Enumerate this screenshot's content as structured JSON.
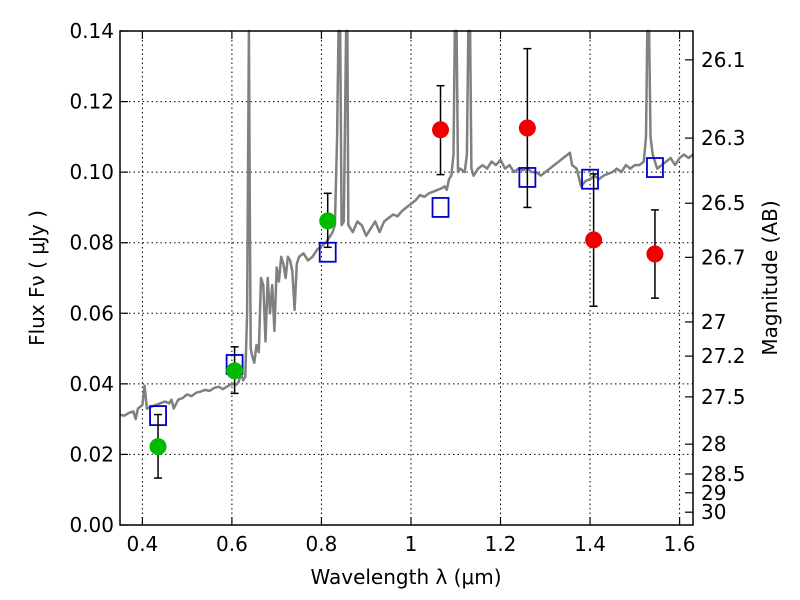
{
  "chart_data": {
    "type": "scatter",
    "xlabel": "Wavelength  λ (μm)",
    "ylabel_left": "Flux  Fν  ( μJy )",
    "ylabel_right": "Magnitude (AB)",
    "xlim": [
      0.35,
      1.63
    ],
    "ylim": [
      0.0,
      0.14
    ],
    "grid": true,
    "x_ticks": [
      {
        "value": 0.4,
        "label": "0.4"
      },
      {
        "value": 0.6,
        "label": "0.6"
      },
      {
        "value": 0.8,
        "label": "0.8"
      },
      {
        "value": 1.0,
        "label": "1"
      },
      {
        "value": 1.2,
        "label": "1.2"
      },
      {
        "value": 1.4,
        "label": "1.4"
      },
      {
        "value": 1.6,
        "label": "1.6"
      }
    ],
    "y_ticks": [
      {
        "value": 0.0,
        "label": "0.00"
      },
      {
        "value": 0.02,
        "label": "0.02"
      },
      {
        "value": 0.04,
        "label": "0.04"
      },
      {
        "value": 0.06,
        "label": "0.06"
      },
      {
        "value": 0.08,
        "label": "0.08"
      },
      {
        "value": 0.1,
        "label": "0.10"
      },
      {
        "value": 0.12,
        "label": "0.12"
      },
      {
        "value": 0.14,
        "label": "0.14"
      }
    ],
    "mag_ticks": [
      {
        "value": 26.1,
        "label": "26.1"
      },
      {
        "value": 26.3,
        "label": "26.3"
      },
      {
        "value": 26.5,
        "label": "26.5"
      },
      {
        "value": 26.7,
        "label": "26.7"
      },
      {
        "value": 27.0,
        "label": "27"
      },
      {
        "value": 27.2,
        "label": "27.2"
      },
      {
        "value": 27.5,
        "label": "27.5"
      },
      {
        "value": 28.0,
        "label": "28"
      },
      {
        "value": 28.5,
        "label": "28.5"
      },
      {
        "value": 29.0,
        "label": "29"
      },
      {
        "value": 30.0,
        "label": "30"
      }
    ],
    "series": [
      {
        "kind": "line",
        "color": "#808080",
        "points": [
          [
            0.35,
            0.0312
          ],
          [
            0.36,
            0.031
          ],
          [
            0.37,
            0.0318
          ],
          [
            0.38,
            0.0322
          ],
          [
            0.385,
            0.03
          ],
          [
            0.39,
            0.033
          ],
          [
            0.4,
            0.034
          ],
          [
            0.405,
            0.0395
          ],
          [
            0.41,
            0.033
          ],
          [
            0.42,
            0.0335
          ],
          [
            0.43,
            0.034
          ],
          [
            0.44,
            0.0345
          ],
          [
            0.45,
            0.035
          ],
          [
            0.46,
            0.0345
          ],
          [
            0.465,
            0.0355
          ],
          [
            0.47,
            0.033
          ],
          [
            0.48,
            0.0355
          ],
          [
            0.49,
            0.036
          ],
          [
            0.5,
            0.037
          ],
          [
            0.51,
            0.0365
          ],
          [
            0.52,
            0.0375
          ],
          [
            0.53,
            0.0378
          ],
          [
            0.54,
            0.0383
          ],
          [
            0.55,
            0.038
          ],
          [
            0.56,
            0.0388
          ],
          [
            0.57,
            0.0392
          ],
          [
            0.58,
            0.0385
          ],
          [
            0.59,
            0.0393
          ],
          [
            0.6,
            0.04
          ],
          [
            0.61,
            0.0398
          ],
          [
            0.615,
            0.0405
          ],
          [
            0.62,
            0.043
          ],
          [
            0.625,
            0.041
          ],
          [
            0.63,
            0.042
          ],
          [
            0.634,
            0.06
          ],
          [
            0.636,
            0.1
          ],
          [
            0.638,
            0.14
          ],
          [
            0.64,
            0.09
          ],
          [
            0.642,
            0.05
          ],
          [
            0.645,
            0.048
          ],
          [
            0.65,
            0.046
          ],
          [
            0.655,
            0.051
          ],
          [
            0.66,
            0.049
          ],
          [
            0.665,
            0.07
          ],
          [
            0.67,
            0.068
          ],
          [
            0.675,
            0.052
          ],
          [
            0.68,
            0.07
          ],
          [
            0.685,
            0.06
          ],
          [
            0.69,
            0.068
          ],
          [
            0.695,
            0.055
          ],
          [
            0.7,
            0.073
          ],
          [
            0.705,
            0.069
          ],
          [
            0.71,
            0.076
          ],
          [
            0.715,
            0.074
          ],
          [
            0.72,
            0.07
          ],
          [
            0.725,
            0.076
          ],
          [
            0.73,
            0.075
          ],
          [
            0.735,
            0.072
          ],
          [
            0.74,
            0.061
          ],
          [
            0.745,
            0.074
          ],
          [
            0.75,
            0.076
          ],
          [
            0.76,
            0.077
          ],
          [
            0.77,
            0.075
          ],
          [
            0.78,
            0.076
          ],
          [
            0.79,
            0.078
          ],
          [
            0.8,
            0.079
          ],
          [
            0.81,
            0.08
          ],
          [
            0.82,
            0.082
          ],
          [
            0.825,
            0.083
          ],
          [
            0.83,
            0.085
          ],
          [
            0.835,
            0.11
          ],
          [
            0.838,
            0.14
          ],
          [
            0.842,
            0.14
          ],
          [
            0.845,
            0.085
          ],
          [
            0.85,
            0.086
          ],
          [
            0.855,
            0.14
          ],
          [
            0.858,
            0.14
          ],
          [
            0.86,
            0.085
          ],
          [
            0.87,
            0.083
          ],
          [
            0.88,
            0.086
          ],
          [
            0.89,
            0.085
          ],
          [
            0.9,
            0.082
          ],
          [
            0.91,
            0.084
          ],
          [
            0.92,
            0.086
          ],
          [
            0.93,
            0.083
          ],
          [
            0.94,
            0.086
          ],
          [
            0.95,
            0.087
          ],
          [
            0.96,
            0.088
          ],
          [
            0.97,
            0.0875
          ],
          [
            0.98,
            0.089
          ],
          [
            0.99,
            0.09
          ],
          [
            1.0,
            0.091
          ],
          [
            1.01,
            0.092
          ],
          [
            1.02,
            0.0935
          ],
          [
            1.03,
            0.093
          ],
          [
            1.04,
            0.094
          ],
          [
            1.05,
            0.0945
          ],
          [
            1.06,
            0.095
          ],
          [
            1.07,
            0.0955
          ],
          [
            1.075,
            0.096
          ],
          [
            1.08,
            0.095
          ],
          [
            1.085,
            0.098
          ],
          [
            1.09,
            0.099
          ],
          [
            1.095,
            0.105
          ],
          [
            1.098,
            0.14
          ],
          [
            1.102,
            0.14
          ],
          [
            1.105,
            0.1
          ],
          [
            1.11,
            0.101
          ],
          [
            1.12,
            0.1
          ],
          [
            1.125,
            0.105
          ],
          [
            1.128,
            0.14
          ],
          [
            1.132,
            0.14
          ],
          [
            1.135,
            0.101
          ],
          [
            1.14,
            0.099
          ],
          [
            1.15,
            0.101
          ],
          [
            1.16,
            0.102
          ],
          [
            1.17,
            0.101
          ],
          [
            1.18,
            0.103
          ],
          [
            1.19,
            0.102
          ],
          [
            1.2,
            0.1035
          ],
          [
            1.21,
            0.101
          ],
          [
            1.22,
            0.102
          ],
          [
            1.23,
            0.1
          ],
          [
            1.24,
            0.101
          ],
          [
            1.25,
            0.1005
          ],
          [
            1.26,
            0.101
          ],
          [
            1.27,
            0.1
          ],
          [
            1.28,
            0.1
          ],
          [
            1.29,
            0.099
          ],
          [
            1.3,
            0.1
          ],
          [
            1.31,
            0.101
          ],
          [
            1.32,
            0.102
          ],
          [
            1.33,
            0.103
          ],
          [
            1.34,
            0.104
          ],
          [
            1.35,
            0.105
          ],
          [
            1.355,
            0.1055
          ],
          [
            1.36,
            0.102
          ],
          [
            1.37,
            0.101
          ],
          [
            1.38,
            0.096
          ],
          [
            1.39,
            0.0975
          ],
          [
            1.4,
            0.098
          ],
          [
            1.41,
            0.099
          ],
          [
            1.42,
            0.098
          ],
          [
            1.43,
            0.099
          ],
          [
            1.44,
            0.0995
          ],
          [
            1.45,
            0.1
          ],
          [
            1.46,
            0.101
          ],
          [
            1.47,
            0.1
          ],
          [
            1.48,
            0.102
          ],
          [
            1.49,
            0.101
          ],
          [
            1.5,
            0.102
          ],
          [
            1.51,
            0.102
          ],
          [
            1.52,
            0.103
          ],
          [
            1.525,
            0.11
          ],
          [
            1.528,
            0.14
          ],
          [
            1.532,
            0.14
          ],
          [
            1.535,
            0.11
          ],
          [
            1.54,
            0.105
          ],
          [
            1.55,
            0.101
          ],
          [
            1.56,
            0.102
          ],
          [
            1.57,
            0.103
          ],
          [
            1.58,
            0.104
          ],
          [
            1.59,
            0.102
          ],
          [
            1.6,
            0.104
          ],
          [
            1.61,
            0.105
          ],
          [
            1.62,
            0.104
          ],
          [
            1.63,
            0.105
          ]
        ]
      },
      {
        "kind": "square",
        "color": "#0000cc",
        "points": [
          [
            0.435,
            0.031
          ],
          [
            0.606,
            0.0455
          ],
          [
            0.814,
            0.0773
          ],
          [
            1.066,
            0.09
          ],
          [
            1.26,
            0.0985
          ],
          [
            1.4,
            0.098
          ],
          [
            1.545,
            0.1013
          ]
        ]
      },
      {
        "kind": "circle",
        "color": "#00bb00",
        "points": [
          {
            "x": 0.435,
            "y": 0.0222,
            "lo": 0.0133,
            "hi": 0.0313
          },
          {
            "x": 0.606,
            "y": 0.0437,
            "lo": 0.0373,
            "hi": 0.0505
          },
          {
            "x": 0.814,
            "y": 0.0862,
            "lo": 0.0787,
            "hi": 0.094
          }
        ]
      },
      {
        "kind": "circle",
        "color": "#ee0000",
        "points": [
          {
            "x": 1.066,
            "y": 0.112,
            "lo": 0.0993,
            "hi": 0.1245
          },
          {
            "x": 1.26,
            "y": 0.1125,
            "lo": 0.09,
            "hi": 0.135
          },
          {
            "x": 1.408,
            "y": 0.0808,
            "lo": 0.062,
            "hi": 0.0995
          },
          {
            "x": 1.545,
            "y": 0.0768,
            "lo": 0.0643,
            "hi": 0.0893
          }
        ]
      }
    ]
  }
}
